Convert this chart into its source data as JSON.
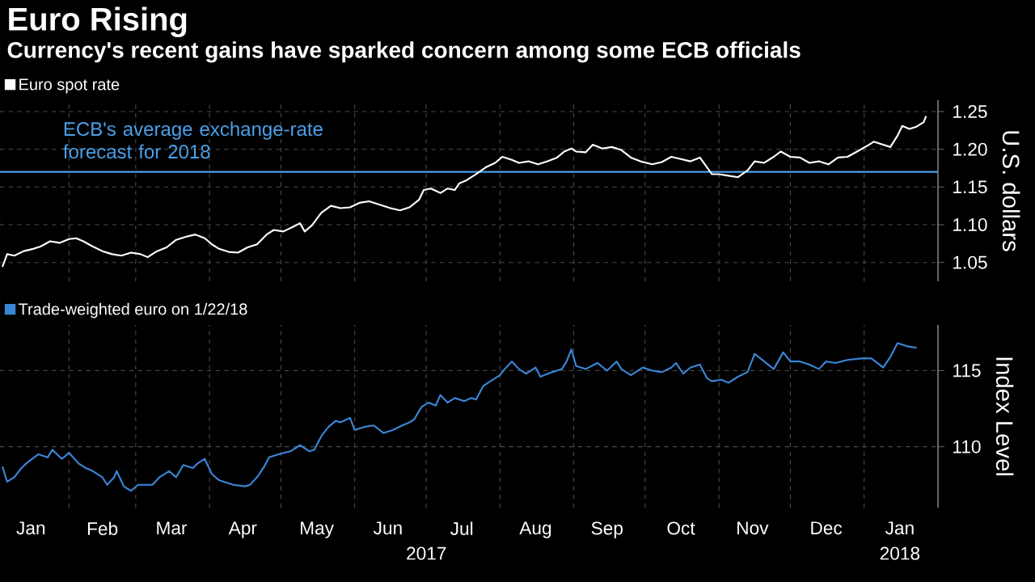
{
  "chart_data": [
    {
      "type": "line",
      "title": "Euro Rising",
      "subtitle": "Currency's recent gains have sparked concern among some ECB officials",
      "ylabel": "U.S. dollars",
      "series": [
        {
          "name": "Euro spot rate",
          "color": "#ffffff",
          "x": [
            "2017-01-04",
            "2017-01-06",
            "2017-01-09",
            "2017-01-13",
            "2017-01-17",
            "2017-01-20",
            "2017-01-24",
            "2017-01-28",
            "2017-02-01",
            "2017-02-04",
            "2017-02-07",
            "2017-02-11",
            "2017-02-15",
            "2017-02-19",
            "2017-02-23",
            "2017-02-27",
            "2017-03-03",
            "2017-03-06",
            "2017-03-10",
            "2017-03-14",
            "2017-03-18",
            "2017-03-22",
            "2017-03-26",
            "2017-03-30",
            "2017-04-02",
            "2017-04-05",
            "2017-04-09",
            "2017-04-13",
            "2017-04-17",
            "2017-04-21",
            "2017-04-25",
            "2017-04-28",
            "2017-05-02",
            "2017-05-06",
            "2017-05-09",
            "2017-05-11",
            "2017-05-14",
            "2017-05-18",
            "2017-05-22",
            "2017-05-26",
            "2017-05-30",
            "2017-06-03",
            "2017-06-07",
            "2017-06-11",
            "2017-06-16",
            "2017-06-20",
            "2017-06-24",
            "2017-06-28",
            "2017-06-30",
            "2017-07-03",
            "2017-07-07",
            "2017-07-10",
            "2017-07-13",
            "2017-07-15",
            "2017-07-18",
            "2017-07-22",
            "2017-07-26",
            "2017-07-30",
            "2017-08-02",
            "2017-08-06",
            "2017-08-09",
            "2017-08-13",
            "2017-08-17",
            "2017-08-21",
            "2017-08-25",
            "2017-08-28",
            "2017-08-31",
            "2017-09-02",
            "2017-09-06",
            "2017-09-09",
            "2017-09-13",
            "2017-09-17",
            "2017-09-21",
            "2017-09-25",
            "2017-09-29",
            "2017-10-04",
            "2017-10-08",
            "2017-10-12",
            "2017-10-16",
            "2017-10-20",
            "2017-10-24",
            "2017-10-27",
            "2017-10-29",
            "2017-11-01",
            "2017-11-05",
            "2017-11-09",
            "2017-11-13",
            "2017-11-16",
            "2017-11-20",
            "2017-11-24",
            "2017-11-27",
            "2017-12-01",
            "2017-12-05",
            "2017-12-09",
            "2017-12-13",
            "2017-12-17",
            "2017-12-21",
            "2017-12-25",
            "2017-12-29",
            "2018-01-03",
            "2018-01-05",
            "2018-01-09",
            "2018-01-12",
            "2018-01-15",
            "2018-01-17",
            "2018-01-20",
            "2018-01-23",
            "2018-01-26",
            "2018-01-27"
          ],
          "values": [
            1.044,
            1.061,
            1.059,
            1.065,
            1.068,
            1.071,
            1.078,
            1.076,
            1.081,
            1.082,
            1.078,
            1.071,
            1.065,
            1.061,
            1.059,
            1.063,
            1.061,
            1.057,
            1.065,
            1.07,
            1.08,
            1.084,
            1.087,
            1.082,
            1.074,
            1.068,
            1.064,
            1.063,
            1.07,
            1.074,
            1.087,
            1.093,
            1.091,
            1.097,
            1.102,
            1.091,
            1.099,
            1.116,
            1.125,
            1.122,
            1.123,
            1.129,
            1.131,
            1.127,
            1.122,
            1.119,
            1.123,
            1.133,
            1.146,
            1.148,
            1.142,
            1.148,
            1.146,
            1.155,
            1.159,
            1.167,
            1.176,
            1.182,
            1.19,
            1.186,
            1.182,
            1.184,
            1.18,
            1.184,
            1.189,
            1.197,
            1.201,
            1.197,
            1.196,
            1.206,
            1.201,
            1.203,
            1.199,
            1.189,
            1.184,
            1.18,
            1.183,
            1.19,
            1.187,
            1.184,
            1.189,
            1.176,
            1.167,
            1.167,
            1.165,
            1.163,
            1.172,
            1.184,
            1.182,
            1.19,
            1.197,
            1.19,
            1.189,
            1.182,
            1.184,
            1.18,
            1.189,
            1.19,
            1.197,
            1.206,
            1.21,
            1.206,
            1.203,
            1.218,
            1.231,
            1.227,
            1.23,
            1.236,
            1.244
          ]
        }
      ],
      "xlim": [
        "2017-01-03",
        "2018-02-01"
      ],
      "ylim": [
        1.025,
        1.265
      ],
      "xticks": [
        {
          "value": "2017-02-01",
          "label": null
        },
        {
          "value": "2017-03-01",
          "label": null
        },
        {
          "value": "2017-04-01",
          "label": null
        },
        {
          "value": "2017-05-01",
          "label": null
        },
        {
          "value": "2017-06-01",
          "label": null
        },
        {
          "value": "2017-07-01",
          "label": null
        },
        {
          "value": "2017-08-01",
          "label": null
        },
        {
          "value": "2017-09-01",
          "label": null
        },
        {
          "value": "2017-10-01",
          "label": null
        },
        {
          "value": "2017-11-01",
          "label": null
        },
        {
          "value": "2017-12-01",
          "label": null
        },
        {
          "value": "2018-01-01",
          "label": null
        }
      ],
      "yticks": [
        1.05,
        {
          "value": 1.1,
          "label": "1.10"
        },
        1.15,
        {
          "value": 1.2,
          "label": "1.20"
        },
        1.25
      ],
      "ref_lines": [
        {
          "axis": "y",
          "value": 1.17,
          "label": "ECB's average exchange-rate forecast for 2018",
          "color": "#4a9fe8"
        }
      ],
      "grid": true,
      "legend": "top left",
      "tick_labels": "y"
    },
    {
      "type": "line",
      "ylabel": "Index Level",
      "series": [
        {
          "name": "Trade-weighted euro on 1/22/18",
          "color": "#3a86d6",
          "x": [
            "2017-01-04",
            "2017-01-06",
            "2017-01-09",
            "2017-01-12",
            "2017-01-14",
            "2017-01-19",
            "2017-01-23",
            "2017-01-25",
            "2017-01-29",
            "2017-02-01",
            "2017-02-05",
            "2017-02-08",
            "2017-02-11",
            "2017-02-15",
            "2017-02-17",
            "2017-02-20",
            "2017-02-21",
            "2017-02-24",
            "2017-02-27",
            "2017-03-02",
            "2017-03-04",
            "2017-03-08",
            "2017-03-11",
            "2017-03-15",
            "2017-03-18",
            "2017-03-21",
            "2017-03-25",
            "2017-03-27",
            "2017-03-30",
            "2017-04-02",
            "2017-04-05",
            "2017-04-07",
            "2017-04-11",
            "2017-04-16",
            "2017-04-18",
            "2017-04-21",
            "2017-04-24",
            "2017-04-26",
            "2017-04-30",
            "2017-05-05",
            "2017-05-09",
            "2017-05-13",
            "2017-05-15",
            "2017-05-18",
            "2017-05-21",
            "2017-05-24",
            "2017-05-26",
            "2017-05-30",
            "2017-06-01",
            "2017-06-05",
            "2017-06-09",
            "2017-06-13",
            "2017-06-17",
            "2017-06-21",
            "2017-06-24",
            "2017-06-26",
            "2017-06-29",
            "2017-07-02",
            "2017-07-05",
            "2017-07-07",
            "2017-07-10",
            "2017-07-13",
            "2017-07-17",
            "2017-07-20",
            "2017-07-22",
            "2017-07-25",
            "2017-07-28",
            "2017-08-01",
            "2017-08-03",
            "2017-08-06",
            "2017-08-09",
            "2017-08-12",
            "2017-08-16",
            "2017-08-18",
            "2017-08-23",
            "2017-08-27",
            "2017-08-29",
            "2017-08-31",
            "2017-09-02",
            "2017-09-06",
            "2017-09-11",
            "2017-09-15",
            "2017-09-19",
            "2017-09-21",
            "2017-09-25",
            "2017-09-30",
            "2017-10-04",
            "2017-10-08",
            "2017-10-12",
            "2017-10-14",
            "2017-10-17",
            "2017-10-20",
            "2017-10-24",
            "2017-10-27",
            "2017-10-29",
            "2017-11-02",
            "2017-11-05",
            "2017-11-09",
            "2017-11-13",
            "2017-11-16",
            "2017-11-20",
            "2017-11-24",
            "2017-11-28",
            "2017-12-01",
            "2017-12-05",
            "2017-12-09",
            "2017-12-13",
            "2017-12-16",
            "2017-12-20",
            "2017-12-25",
            "2017-12-31",
            "2018-01-04",
            "2018-01-09",
            "2018-01-12",
            "2018-01-15",
            "2018-01-19",
            "2018-01-23"
          ],
          "values": [
            108.7,
            107.7,
            108.0,
            108.6,
            108.9,
            109.5,
            109.3,
            109.8,
            109.2,
            109.6,
            108.9,
            108.6,
            108.4,
            108.0,
            107.5,
            108.0,
            108.4,
            107.4,
            107.1,
            107.5,
            107.5,
            107.5,
            108.0,
            108.4,
            108.0,
            108.8,
            108.6,
            108.9,
            109.2,
            108.2,
            107.8,
            107.7,
            107.5,
            107.4,
            107.5,
            108.0,
            108.7,
            109.3,
            109.5,
            109.7,
            110.1,
            109.7,
            109.8,
            110.7,
            111.3,
            111.7,
            111.6,
            111.9,
            111.1,
            111.3,
            111.4,
            110.9,
            111.1,
            111.4,
            111.6,
            111.8,
            112.6,
            112.9,
            112.7,
            113.4,
            112.9,
            113.2,
            113.0,
            113.2,
            113.1,
            114.0,
            114.3,
            114.7,
            115.1,
            115.6,
            115.1,
            114.8,
            115.2,
            114.6,
            114.9,
            115.1,
            115.6,
            116.4,
            115.3,
            115.1,
            115.5,
            115.0,
            115.6,
            115.1,
            114.7,
            115.2,
            115.0,
            114.9,
            115.2,
            115.5,
            114.8,
            115.2,
            115.4,
            114.5,
            114.3,
            114.4,
            114.2,
            114.6,
            114.9,
            116.1,
            115.6,
            115.1,
            116.2,
            115.6,
            115.6,
            115.4,
            115.1,
            115.6,
            115.5,
            115.7,
            115.8,
            115.8,
            115.2,
            115.9,
            116.8,
            116.6,
            116.5
          ]
        }
      ],
      "xlim": [
        "2017-01-03",
        "2018-02-01"
      ],
      "ylim": [
        106,
        118
      ],
      "xticks": [
        {
          "value": "2017-01-16",
          "label": "Jan"
        },
        {
          "value": "2017-02-01",
          "label": null
        },
        {
          "value": "2017-02-15",
          "label": "Feb"
        },
        {
          "value": "2017-03-01",
          "label": null
        },
        {
          "value": "2017-03-16",
          "label": "Mar"
        },
        {
          "value": "2017-04-01",
          "label": null
        },
        {
          "value": "2017-04-15",
          "label": "Apr"
        },
        {
          "value": "2017-05-01",
          "label": null
        },
        {
          "value": "2017-05-16",
          "label": "May"
        },
        {
          "value": "2017-06-01",
          "label": null
        },
        {
          "value": "2017-06-15",
          "label": "Jun"
        },
        {
          "value": "2017-07-01",
          "label": null
        },
        {
          "value": "2017-07-16",
          "label": "Jul"
        },
        {
          "value": "2017-08-01",
          "label": null
        },
        {
          "value": "2017-08-16",
          "label": "Aug"
        },
        {
          "value": "2017-09-01",
          "label": null
        },
        {
          "value": "2017-09-15",
          "label": "Sep"
        },
        {
          "value": "2017-10-01",
          "label": null
        },
        {
          "value": "2017-10-16",
          "label": "Oct"
        },
        {
          "value": "2017-11-01",
          "label": null
        },
        {
          "value": "2017-11-15",
          "label": "Nov"
        },
        {
          "value": "2017-12-01",
          "label": null
        },
        {
          "value": "2017-12-16",
          "label": "Dec"
        },
        {
          "value": "2018-01-01",
          "label": null
        },
        {
          "value": "2018-01-16",
          "label": "Jan"
        }
      ],
      "yticks": [
        110,
        115
      ],
      "annotations": [
        "2017",
        "2018"
      ],
      "grid": true,
      "legend": "top left"
    }
  ]
}
